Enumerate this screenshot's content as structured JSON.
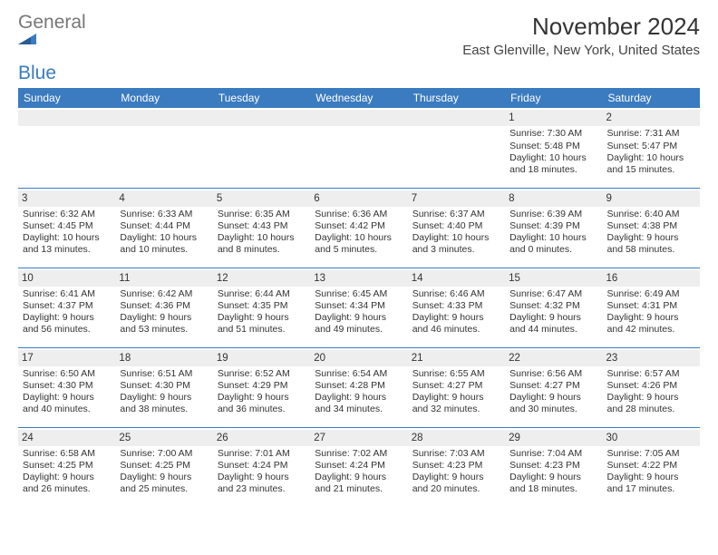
{
  "brand": {
    "part1": "General",
    "part2": "Blue"
  },
  "title": "November 2024",
  "location": "East Glenville, New York, United States",
  "colors": {
    "header_bg": "#3b7bbf",
    "header_text": "#ffffff",
    "cell_border": "#3b7bbf",
    "daynum_bg": "#eeeeee",
    "body_text": "#333333",
    "background": "#ffffff"
  },
  "weekdays": [
    "Sunday",
    "Monday",
    "Tuesday",
    "Wednesday",
    "Thursday",
    "Friday",
    "Saturday"
  ],
  "weeks": [
    [
      {
        "blank": true
      },
      {
        "blank": true
      },
      {
        "blank": true
      },
      {
        "blank": true
      },
      {
        "blank": true
      },
      {
        "day": "1",
        "sunrise": "Sunrise: 7:30 AM",
        "sunset": "Sunset: 5:48 PM",
        "daylight": "Daylight: 10 hours and 18 minutes."
      },
      {
        "day": "2",
        "sunrise": "Sunrise: 7:31 AM",
        "sunset": "Sunset: 5:47 PM",
        "daylight": "Daylight: 10 hours and 15 minutes."
      }
    ],
    [
      {
        "day": "3",
        "sunrise": "Sunrise: 6:32 AM",
        "sunset": "Sunset: 4:45 PM",
        "daylight": "Daylight: 10 hours and 13 minutes."
      },
      {
        "day": "4",
        "sunrise": "Sunrise: 6:33 AM",
        "sunset": "Sunset: 4:44 PM",
        "daylight": "Daylight: 10 hours and 10 minutes."
      },
      {
        "day": "5",
        "sunrise": "Sunrise: 6:35 AM",
        "sunset": "Sunset: 4:43 PM",
        "daylight": "Daylight: 10 hours and 8 minutes."
      },
      {
        "day": "6",
        "sunrise": "Sunrise: 6:36 AM",
        "sunset": "Sunset: 4:42 PM",
        "daylight": "Daylight: 10 hours and 5 minutes."
      },
      {
        "day": "7",
        "sunrise": "Sunrise: 6:37 AM",
        "sunset": "Sunset: 4:40 PM",
        "daylight": "Daylight: 10 hours and 3 minutes."
      },
      {
        "day": "8",
        "sunrise": "Sunrise: 6:39 AM",
        "sunset": "Sunset: 4:39 PM",
        "daylight": "Daylight: 10 hours and 0 minutes."
      },
      {
        "day": "9",
        "sunrise": "Sunrise: 6:40 AM",
        "sunset": "Sunset: 4:38 PM",
        "daylight": "Daylight: 9 hours and 58 minutes."
      }
    ],
    [
      {
        "day": "10",
        "sunrise": "Sunrise: 6:41 AM",
        "sunset": "Sunset: 4:37 PM",
        "daylight": "Daylight: 9 hours and 56 minutes."
      },
      {
        "day": "11",
        "sunrise": "Sunrise: 6:42 AM",
        "sunset": "Sunset: 4:36 PM",
        "daylight": "Daylight: 9 hours and 53 minutes."
      },
      {
        "day": "12",
        "sunrise": "Sunrise: 6:44 AM",
        "sunset": "Sunset: 4:35 PM",
        "daylight": "Daylight: 9 hours and 51 minutes."
      },
      {
        "day": "13",
        "sunrise": "Sunrise: 6:45 AM",
        "sunset": "Sunset: 4:34 PM",
        "daylight": "Daylight: 9 hours and 49 minutes."
      },
      {
        "day": "14",
        "sunrise": "Sunrise: 6:46 AM",
        "sunset": "Sunset: 4:33 PM",
        "daylight": "Daylight: 9 hours and 46 minutes."
      },
      {
        "day": "15",
        "sunrise": "Sunrise: 6:47 AM",
        "sunset": "Sunset: 4:32 PM",
        "daylight": "Daylight: 9 hours and 44 minutes."
      },
      {
        "day": "16",
        "sunrise": "Sunrise: 6:49 AM",
        "sunset": "Sunset: 4:31 PM",
        "daylight": "Daylight: 9 hours and 42 minutes."
      }
    ],
    [
      {
        "day": "17",
        "sunrise": "Sunrise: 6:50 AM",
        "sunset": "Sunset: 4:30 PM",
        "daylight": "Daylight: 9 hours and 40 minutes."
      },
      {
        "day": "18",
        "sunrise": "Sunrise: 6:51 AM",
        "sunset": "Sunset: 4:30 PM",
        "daylight": "Daylight: 9 hours and 38 minutes."
      },
      {
        "day": "19",
        "sunrise": "Sunrise: 6:52 AM",
        "sunset": "Sunset: 4:29 PM",
        "daylight": "Daylight: 9 hours and 36 minutes."
      },
      {
        "day": "20",
        "sunrise": "Sunrise: 6:54 AM",
        "sunset": "Sunset: 4:28 PM",
        "daylight": "Daylight: 9 hours and 34 minutes."
      },
      {
        "day": "21",
        "sunrise": "Sunrise: 6:55 AM",
        "sunset": "Sunset: 4:27 PM",
        "daylight": "Daylight: 9 hours and 32 minutes."
      },
      {
        "day": "22",
        "sunrise": "Sunrise: 6:56 AM",
        "sunset": "Sunset: 4:27 PM",
        "daylight": "Daylight: 9 hours and 30 minutes."
      },
      {
        "day": "23",
        "sunrise": "Sunrise: 6:57 AM",
        "sunset": "Sunset: 4:26 PM",
        "daylight": "Daylight: 9 hours and 28 minutes."
      }
    ],
    [
      {
        "day": "24",
        "sunrise": "Sunrise: 6:58 AM",
        "sunset": "Sunset: 4:25 PM",
        "daylight": "Daylight: 9 hours and 26 minutes."
      },
      {
        "day": "25",
        "sunrise": "Sunrise: 7:00 AM",
        "sunset": "Sunset: 4:25 PM",
        "daylight": "Daylight: 9 hours and 25 minutes."
      },
      {
        "day": "26",
        "sunrise": "Sunrise: 7:01 AM",
        "sunset": "Sunset: 4:24 PM",
        "daylight": "Daylight: 9 hours and 23 minutes."
      },
      {
        "day": "27",
        "sunrise": "Sunrise: 7:02 AM",
        "sunset": "Sunset: 4:24 PM",
        "daylight": "Daylight: 9 hours and 21 minutes."
      },
      {
        "day": "28",
        "sunrise": "Sunrise: 7:03 AM",
        "sunset": "Sunset: 4:23 PM",
        "daylight": "Daylight: 9 hours and 20 minutes."
      },
      {
        "day": "29",
        "sunrise": "Sunrise: 7:04 AM",
        "sunset": "Sunset: 4:23 PM",
        "daylight": "Daylight: 9 hours and 18 minutes."
      },
      {
        "day": "30",
        "sunrise": "Sunrise: 7:05 AM",
        "sunset": "Sunset: 4:22 PM",
        "daylight": "Daylight: 9 hours and 17 minutes."
      }
    ]
  ]
}
